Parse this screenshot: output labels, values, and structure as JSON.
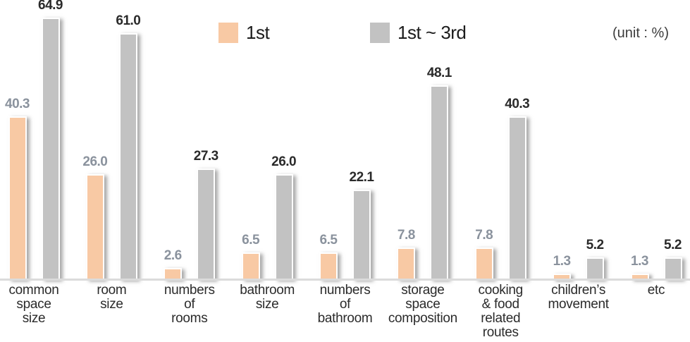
{
  "chart_data": {
    "type": "bar",
    "title": "",
    "unit_label": "(unit : %)",
    "categories": [
      "common space size",
      "room size",
      "numbers of rooms",
      "bathroom size",
      "numbers of bathroom",
      "storage space composition",
      "cooking & food related routes",
      "children’s movement",
      "etc"
    ],
    "category_lines": [
      [
        "common",
        "space",
        "size"
      ],
      [
        "room",
        "size"
      ],
      [
        "numbers",
        "of",
        "rooms"
      ],
      [
        "bathroom",
        "size"
      ],
      [
        "numbers",
        "of",
        "bathroom"
      ],
      [
        "storage",
        "space",
        "composition"
      ],
      [
        "cooking",
        "& food",
        "related",
        "routes"
      ],
      [
        "children’s",
        "movement"
      ],
      [
        "etc"
      ]
    ],
    "series": [
      {
        "name": "1st",
        "color": "#f8c9a4",
        "value_label_color": "#8a929d",
        "values": [
          40.3,
          26.0,
          2.6,
          6.5,
          6.5,
          7.8,
          7.8,
          1.3,
          1.3
        ]
      },
      {
        "name": "1st ~ 3rd",
        "color": "#c2c2c2",
        "value_label_color": "#2a2a2a",
        "values": [
          64.9,
          61.0,
          27.3,
          26.0,
          22.1,
          48.1,
          40.3,
          5.2,
          5.2
        ]
      }
    ],
    "value_decimals": 1,
    "ylim": [
      0,
      70
    ],
    "grid": false,
    "legend_position": "top-center",
    "xlabel": "",
    "ylabel": ""
  }
}
